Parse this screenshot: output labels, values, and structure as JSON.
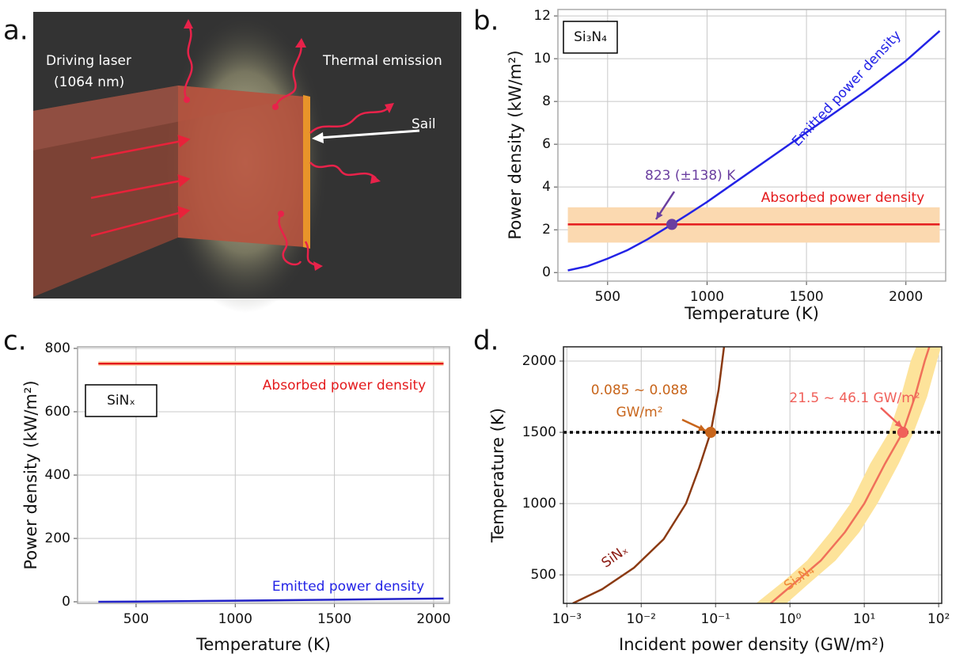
{
  "panel_a": {
    "panel_label": "a.",
    "laser_label": [
      "Driving laser",
      "(1064 nm)"
    ],
    "emission_label": "Thermal emission",
    "sail_label": "Sail"
  },
  "chart_data": [
    {
      "type": "line",
      "panel_label": "b.",
      "xlabel": "Temperature (K)",
      "ylabel": "Power density (kW/m²)",
      "xlim": [
        250,
        2200
      ],
      "ylim": [
        -0.4,
        12.3
      ],
      "xticks": [
        500,
        1000,
        1500,
        2000
      ],
      "yticks": [
        0,
        2,
        4,
        6,
        8,
        10,
        12
      ],
      "grid": true,
      "label_box": "Si₃N₄",
      "series": [
        {
          "color": "#e41a1c",
          "x": [
            300,
            2170
          ],
          "values": [
            2.25,
            2.25
          ],
          "range": [
            1.4,
            3.05
          ],
          "range_color": "#fbd9b0"
        },
        {
          "color": "#2323e6",
          "x": [
            300,
            400,
            500,
            600,
            700,
            823,
            900,
            1000,
            1200,
            1400,
            1600,
            1800,
            2000,
            2170
          ],
          "values": [
            0.1,
            0.3,
            0.65,
            1.05,
            1.55,
            2.25,
            2.7,
            3.3,
            4.6,
            5.9,
            7.2,
            8.5,
            9.9,
            11.3
          ]
        }
      ],
      "points": [
        {
          "x": 823,
          "y": 2.25,
          "color": "#6b3fa0"
        }
      ],
      "annotations": [
        {
          "text": "823 (±138) K",
          "color": "#6b3fa0"
        },
        {
          "text": "Absorbed power density",
          "color": "#e41a1c"
        },
        {
          "text": "Emitted power density",
          "color": "#2323e6"
        }
      ]
    },
    {
      "type": "line",
      "panel_label": "c.",
      "xlabel": "Temperature (K)",
      "ylabel": "Power density (kW/m²)",
      "xlim": [
        205,
        2080
      ],
      "ylim": [
        -5,
        805
      ],
      "xticks": [
        500,
        1000,
        1500,
        2000
      ],
      "yticks": [
        0,
        200,
        400,
        600,
        800
      ],
      "grid": true,
      "label_box": "SiNₓ",
      "series": [
        {
          "color": "#e41a1c",
          "x": [
            310,
            2050
          ],
          "values": [
            752,
            752
          ],
          "range": [
            745,
            760
          ],
          "range_color": "#fbd9b0"
        },
        {
          "color": "#2323c8",
          "x": [
            310,
            500,
            1000,
            1500,
            2050
          ],
          "values": [
            0.1,
            0.65,
            3.3,
            6.6,
            10.4
          ]
        }
      ],
      "annotations": [
        {
          "text": "Absorbed power density",
          "color": "#e41a1c"
        },
        {
          "text": "Emitted power density",
          "color": "#2323e6"
        }
      ]
    },
    {
      "type": "line",
      "panel_label": "d.",
      "xlabel": "Incident power density (GW/m²)",
      "ylabel": "Temperature (K)",
      "xscale": "log",
      "xlim": [
        0.0009,
        110
      ],
      "ylim": [
        300,
        2100
      ],
      "xticks": [
        {
          "value": 0.001,
          "label": "10⁻³"
        },
        {
          "value": 0.01,
          "label": "10⁻²"
        },
        {
          "value": 0.1,
          "label": "10⁻¹"
        },
        {
          "value": 1,
          "label": "10⁰"
        },
        {
          "value": 10,
          "label": "10¹"
        },
        {
          "value": 100,
          "label": "10²"
        }
      ],
      "yticks": [
        500,
        1000,
        1500,
        2000
      ],
      "grid": true,
      "hline": 1500,
      "series": [
        {
          "color": "#8b3a12",
          "x": [
            0.0012,
            0.003,
            0.008,
            0.02,
            0.04,
            0.06,
            0.086,
            0.11,
            0.13
          ],
          "values": [
            300,
            400,
            550,
            750,
            1000,
            1250,
            1500,
            1800,
            2100
          ]
        },
        {
          "color": "#f0705a",
          "x": [
            0.55,
            1.2,
            2.6,
            5.5,
            10,
            19,
            33,
            48,
            65,
            75
          ],
          "values": [
            300,
            450,
            600,
            800,
            1000,
            1280,
            1500,
            1750,
            2000,
            2100
          ],
          "band": {
            "color": "#fde39a",
            "x_low": [
              0.35,
              0.8,
              1.7,
              3.5,
              6.5,
              12,
              21.5,
              31,
              42,
              50
            ],
            "x_high": [
              0.9,
              1.9,
              4.1,
              8.6,
              15,
              29,
              46.1,
              70,
              95,
              108
            ]
          }
        }
      ],
      "points": [
        {
          "x": 0.086,
          "y": 1500,
          "color": "#c8651b"
        },
        {
          "x": 33,
          "y": 1500,
          "color": "#f0605a"
        }
      ],
      "annotations": [
        {
          "text": "0.085 ~ 0.088",
          "color": "#c8651b"
        },
        {
          "text": "GW/m²",
          "color": "#c8651b"
        },
        {
          "text": "21.5 ~ 46.1 GW/m²",
          "color": "#f0605a"
        },
        {
          "text": "SiNₓ",
          "color": "#8b1a12"
        },
        {
          "text": "Si₃N₄",
          "color": "#f08a3a"
        }
      ]
    }
  ]
}
